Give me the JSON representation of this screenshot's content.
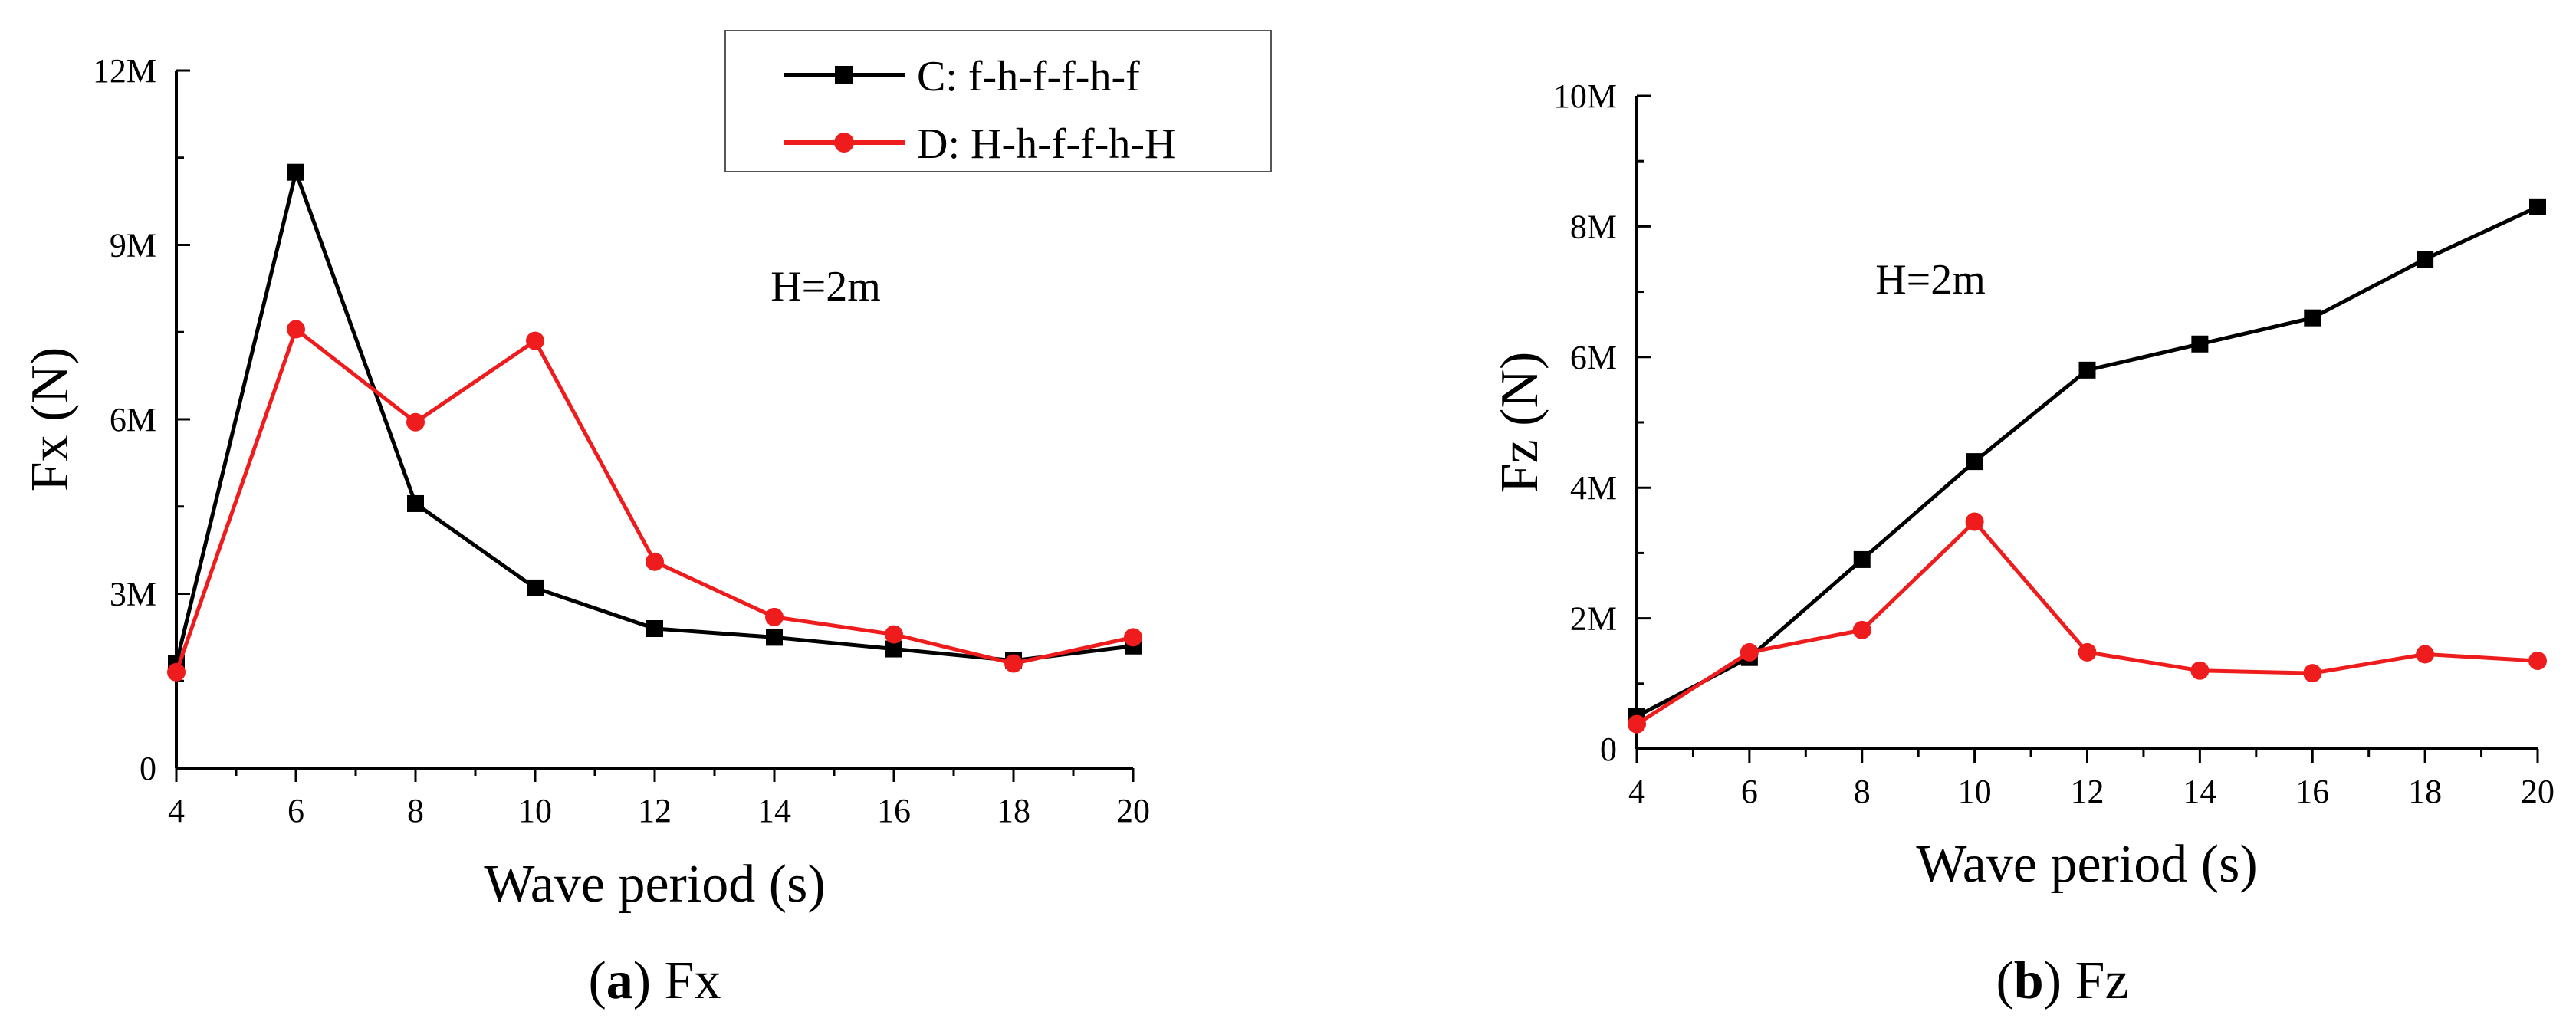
{
  "chart_data": [
    {
      "type": "line",
      "panel": "a",
      "caption": {
        "letter": "a",
        "text": " Fx"
      },
      "xlabel": "Wave period (s)",
      "ylabel": "Fx (N)",
      "annotation": "H=2m",
      "xlim": [
        4,
        20
      ],
      "ylim": [
        0,
        12000000
      ],
      "x_ticks": [
        4,
        6,
        8,
        10,
        12,
        14,
        16,
        18,
        20
      ],
      "y_ticks": [
        {
          "value": 0,
          "label": "0"
        },
        {
          "value": 3000000,
          "label": "3M"
        },
        {
          "value": 6000000,
          "label": "6M"
        },
        {
          "value": 9000000,
          "label": "9M"
        },
        {
          "value": 12000000,
          "label": "12M"
        }
      ],
      "legend": "top-right",
      "x": [
        4,
        6,
        8,
        10,
        12,
        14,
        16,
        18,
        20
      ],
      "series": [
        {
          "name": "C: f-h-f-f-h-f",
          "color": "#000000",
          "marker": "square",
          "values": [
            1800000,
            10250000,
            4550000,
            3100000,
            2400000,
            2250000,
            2050000,
            1850000,
            2100000
          ]
        },
        {
          "name": "D: H-h-f-f-h-H",
          "color": "#ee1c1c",
          "marker": "circle",
          "values": [
            1650000,
            7550000,
            5950000,
            7350000,
            3550000,
            2600000,
            2300000,
            1800000,
            2250000
          ]
        }
      ]
    },
    {
      "type": "line",
      "panel": "b",
      "caption": {
        "letter": "b",
        "text": " Fz"
      },
      "xlabel": "Wave period (s)",
      "ylabel": "Fz (N)",
      "annotation": "H=2m",
      "xlim": [
        4,
        20
      ],
      "ylim": [
        0,
        10000000
      ],
      "x_ticks": [
        4,
        6,
        8,
        10,
        12,
        14,
        16,
        18,
        20
      ],
      "y_ticks": [
        {
          "value": 0,
          "label": "0"
        },
        {
          "value": 2000000,
          "label": "2M"
        },
        {
          "value": 4000000,
          "label": "4M"
        },
        {
          "value": 6000000,
          "label": "6M"
        },
        {
          "value": 8000000,
          "label": "8M"
        },
        {
          "value": 10000000,
          "label": "10M"
        }
      ],
      "x": [
        4,
        6,
        8,
        10,
        12,
        14,
        16,
        18,
        20
      ],
      "series": [
        {
          "name": "C: f-h-f-f-h-f",
          "color": "#000000",
          "marker": "square",
          "values": [
            500000,
            1400000,
            2900000,
            4400000,
            5800000,
            6200000,
            6600000,
            7500000,
            8300000
          ]
        },
        {
          "name": "D: H-h-f-f-h-H",
          "color": "#ee1c1c",
          "marker": "circle",
          "values": [
            380000,
            1480000,
            1820000,
            3480000,
            1480000,
            1200000,
            1160000,
            1450000,
            1350000
          ]
        }
      ]
    }
  ]
}
